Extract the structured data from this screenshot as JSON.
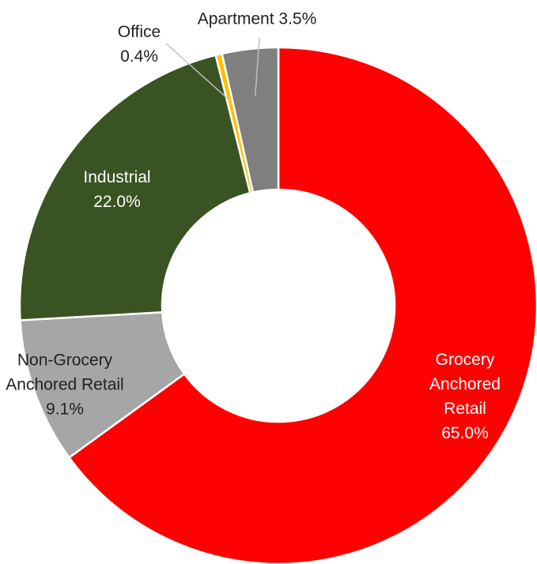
{
  "chart_data": {
    "type": "donut",
    "categories": [
      "Grocery Anchored Retail",
      "Non-Grocery Anchored Retail",
      "Industrial",
      "Office",
      "Apartment"
    ],
    "values": [
      65.0,
      9.1,
      22.0,
      0.4,
      3.5
    ],
    "value_labels": [
      "65.0%",
      "9.1%",
      "22.0%",
      "0.4%",
      "3.5%"
    ],
    "colors": [
      "#ff0000",
      "#a6a6a6",
      "#3a5322",
      "#ffc000",
      "#7f7f7f"
    ]
  }
}
